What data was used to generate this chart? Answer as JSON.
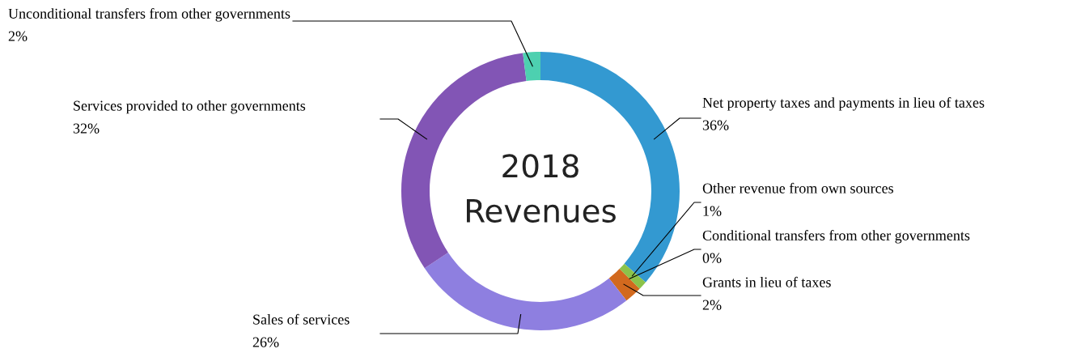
{
  "chart_data": {
    "type": "donut",
    "title": "2018\nRevenues",
    "categories": [
      "Net property taxes and payments in lieu of taxes",
      "Other revenue from own sources",
      "Conditional transfers from other governments",
      "Grants in lieu of taxes",
      "Sales of services",
      "Services provided to other governments",
      "Unconditional transfers from other governments"
    ],
    "values": [
      36,
      1,
      0,
      2,
      26,
      32,
      2
    ],
    "value_labels": [
      "36%",
      "1%",
      "0%",
      "2%",
      "26%",
      "32%",
      "2%"
    ],
    "colors": [
      "#3399d1",
      "#8bc34a",
      "#f2c12e",
      "#d2691e",
      "#8e7fe0",
      "#8255b5",
      "#4dd0b0"
    ]
  }
}
